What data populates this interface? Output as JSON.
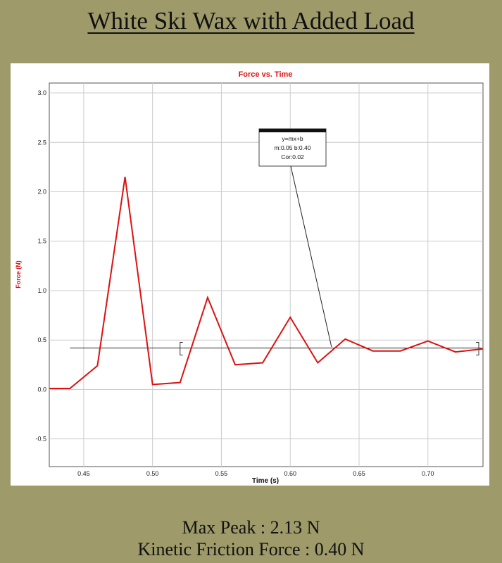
{
  "slide": {
    "title": "White Ski Wax with Added Load",
    "max_peak": "Max Peak : 2.13 N",
    "kinetic_friction": "Kinetic Friction Force : 0.40 N"
  },
  "colors": {
    "background": "#9e9a6a",
    "series": "#dd1111",
    "title": "#dd1111",
    "grid": "#cccccc",
    "fit_line": "#222222"
  },
  "chart_data": {
    "type": "line",
    "title": "Force vs. Time",
    "xlabel": "Time (s)",
    "ylabel": "Force (N)",
    "xlim": [
      0.425,
      0.74
    ],
    "ylim": [
      -0.78,
      3.1
    ],
    "xticks": [
      0.45,
      0.5,
      0.55,
      0.6,
      0.65,
      0.7
    ],
    "xtick_labels": [
      "0.45",
      "0.50",
      "0.55",
      "0.60",
      "0.65",
      "0.70"
    ],
    "yticks": [
      -0.5,
      0.0,
      0.5,
      1.0,
      1.5,
      2.0,
      2.5,
      3.0
    ],
    "ytick_labels": [
      "-0.5",
      "0.0",
      "0.5",
      "1.0",
      "1.5",
      "2.0",
      "2.5",
      "3.0"
    ],
    "grid": true,
    "series": [
      {
        "x": [
          0.425,
          0.44,
          0.46,
          0.48,
          0.5,
          0.52,
          0.54,
          0.56,
          0.58,
          0.6,
          0.62,
          0.64,
          0.66,
          0.68,
          0.7,
          0.72,
          0.74
        ],
        "y": [
          0.01,
          0.01,
          0.24,
          2.15,
          0.05,
          0.07,
          0.93,
          0.25,
          0.27,
          0.73,
          0.27,
          0.51,
          0.39,
          0.39,
          0.49,
          0.38,
          0.41
        ]
      }
    ],
    "fit": {
      "x_range": [
        0.44,
        0.74
      ],
      "y": 0.42,
      "bracket_x": [
        0.52,
        0.74
      ],
      "box_lines": [
        "y=mx+b",
        "m:0.05  b:0.40",
        "Cor:0.02"
      ],
      "pointer_to": [
        0.63,
        0.43
      ]
    }
  }
}
